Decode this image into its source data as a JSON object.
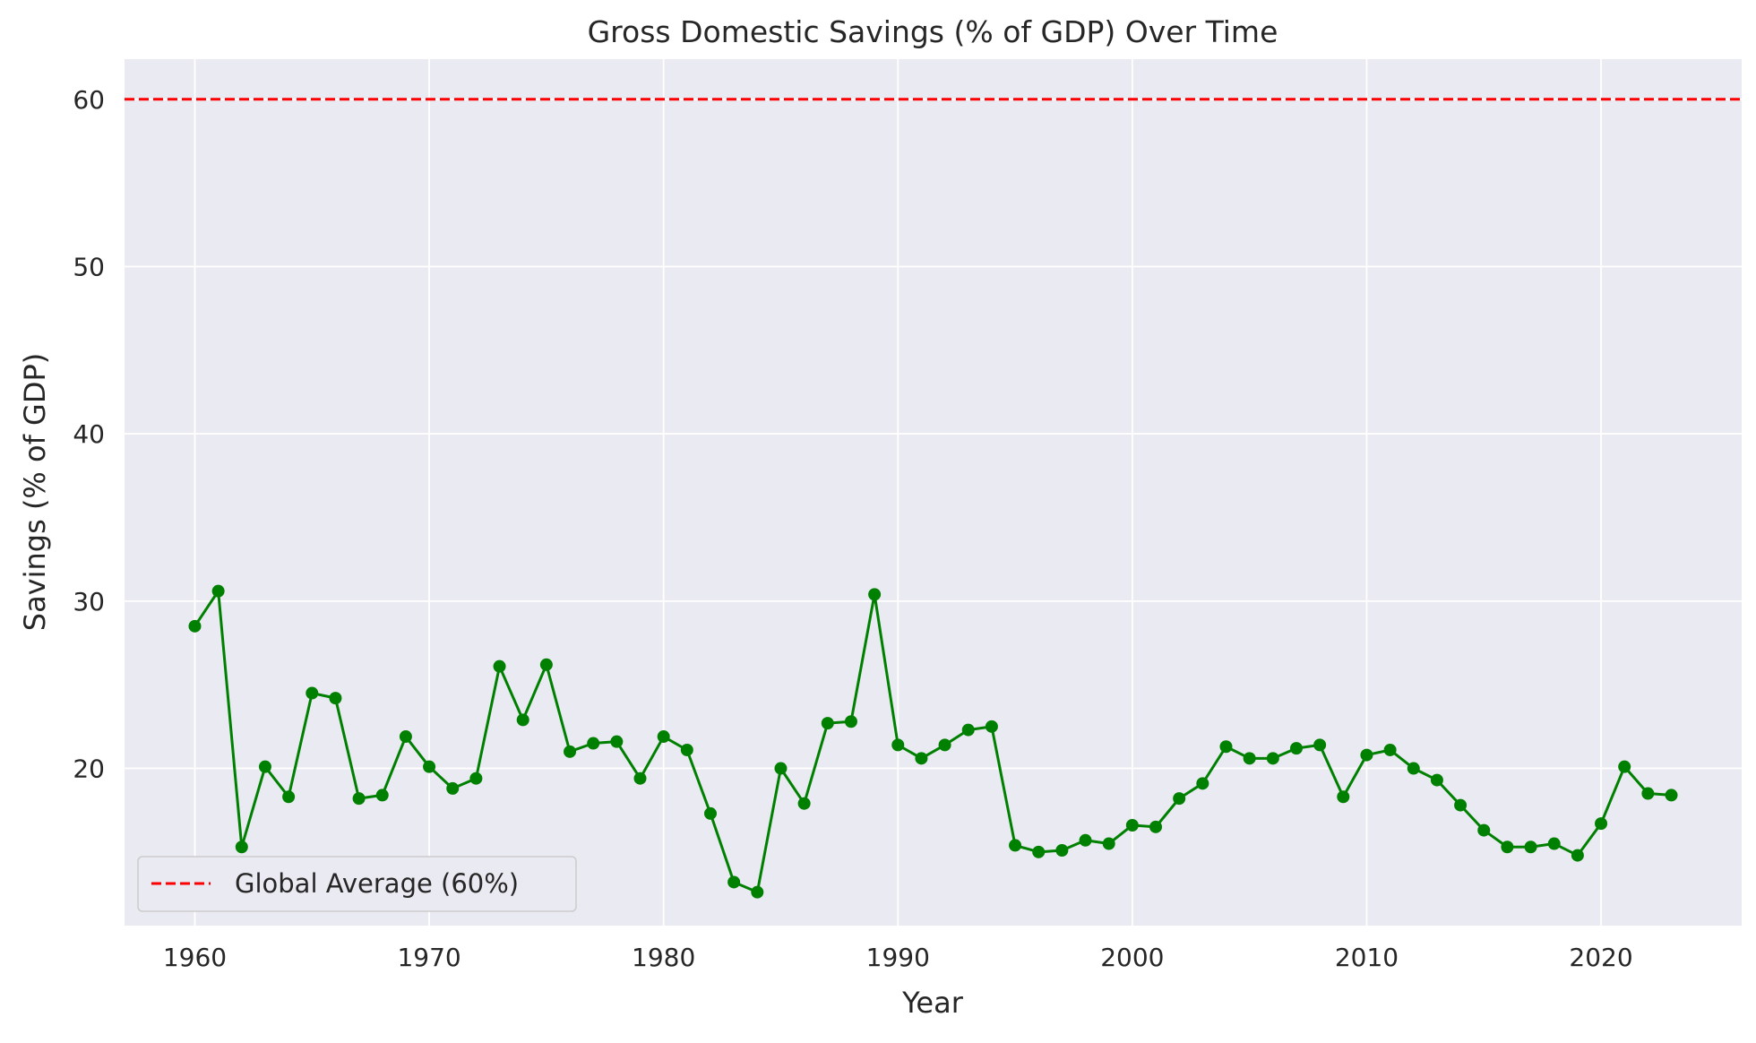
{
  "chart_data": {
    "type": "line",
    "title": "Gross Domestic Savings (% of GDP) Over Time",
    "xlabel": "Year",
    "ylabel": "Savings (% of GDP)",
    "xlim": [
      1957,
      2026
    ],
    "ylim": [
      10.6,
      62.4
    ],
    "x_ticks": [
      1960,
      1970,
      1980,
      1990,
      2000,
      2010,
      2020
    ],
    "y_ticks": [
      20,
      30,
      40,
      50,
      60
    ],
    "grid": true,
    "legend_position": "lower-left",
    "colors": {
      "series": "#008000",
      "reference": "#ff0000",
      "plot_background": "#eaeaf2",
      "grid": "#ffffff"
    },
    "reference_line": {
      "name": "Global Average (60%)",
      "y": 60,
      "style": "dashed"
    },
    "x": [
      1960,
      1961,
      1962,
      1963,
      1964,
      1965,
      1966,
      1967,
      1968,
      1969,
      1970,
      1971,
      1972,
      1973,
      1974,
      1975,
      1976,
      1977,
      1978,
      1979,
      1980,
      1981,
      1982,
      1983,
      1984,
      1985,
      1986,
      1987,
      1988,
      1989,
      1990,
      1991,
      1992,
      1993,
      1994,
      1995,
      1996,
      1997,
      1998,
      1999,
      2000,
      2001,
      2002,
      2003,
      2004,
      2005,
      2006,
      2007,
      2008,
      2009,
      2010,
      2011,
      2012,
      2013,
      2014,
      2015,
      2016,
      2017,
      2018,
      2019,
      2020,
      2021,
      2022,
      2023
    ],
    "series": [
      {
        "values": [
          28.5,
          30.6,
          15.3,
          20.1,
          18.3,
          24.5,
          24.2,
          18.2,
          18.4,
          21.9,
          20.1,
          18.8,
          19.4,
          26.1,
          22.9,
          26.2,
          21.0,
          21.5,
          21.6,
          19.4,
          21.9,
          21.1,
          17.3,
          13.2,
          12.6,
          20.0,
          17.9,
          22.7,
          22.8,
          30.4,
          21.4,
          20.6,
          21.4,
          22.3,
          22.5,
          15.4,
          15.0,
          15.1,
          15.7,
          15.5,
          16.6,
          16.5,
          18.2,
          19.1,
          21.3,
          20.6,
          20.6,
          21.2,
          21.4,
          18.3,
          20.8,
          21.1,
          20.0,
          19.3,
          17.8,
          16.3,
          15.3,
          15.3,
          15.5,
          14.8,
          16.7,
          20.1,
          18.5,
          18.4
        ]
      }
    ]
  }
}
